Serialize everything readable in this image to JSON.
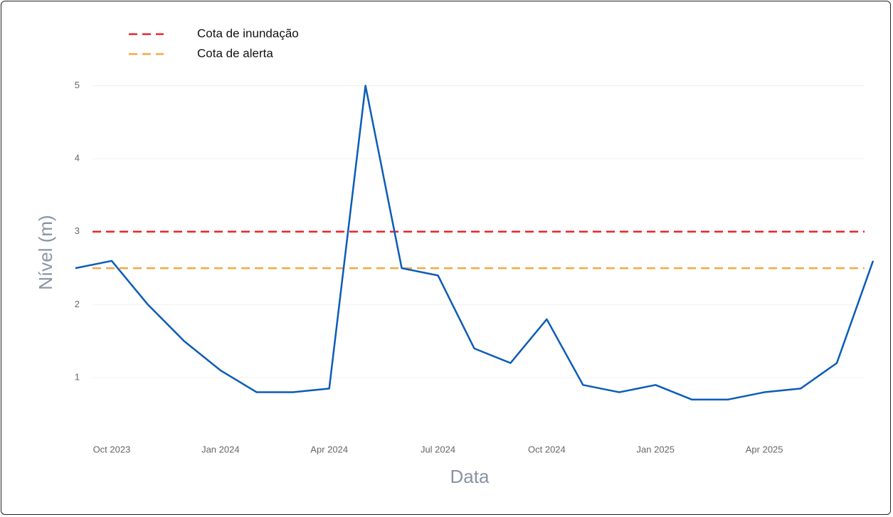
{
  "chart_data": {
    "type": "line",
    "xlabel": "Data",
    "ylabel": "Nível (m)",
    "x": [
      "2023-09",
      "2023-10",
      "2023-11",
      "2023-12",
      "2024-01",
      "2024-02",
      "2024-03",
      "2024-04",
      "2024-05",
      "2024-06",
      "2024-07",
      "2024-08",
      "2024-09",
      "2024-10",
      "2024-11",
      "2024-12",
      "2025-01",
      "2025-02",
      "2025-03",
      "2025-04",
      "2025-05",
      "2025-06",
      "2025-07"
    ],
    "series": [
      {
        "color": "#0a5cb8",
        "values": [
          2.5,
          2.6,
          2.0,
          1.5,
          1.1,
          0.8,
          0.8,
          0.85,
          5.0,
          2.5,
          2.4,
          1.4,
          1.2,
          1.8,
          0.9,
          0.8,
          0.9,
          0.7,
          0.7,
          0.8,
          0.85,
          1.2,
          2.6
        ]
      }
    ],
    "hlines": [
      {
        "name": "Cota de inundação",
        "color": "#e8262b",
        "value": 3
      },
      {
        "name": "Cota de alerta",
        "color": "#f5a742",
        "value": 2.5
      }
    ],
    "xlim": [
      "2023-09",
      "2025-07"
    ],
    "xticks": [
      {
        "value": "2023-10",
        "label": "Oct 2023"
      },
      {
        "value": "2024-01",
        "label": "Jan 2024"
      },
      {
        "value": "2024-04",
        "label": "Apr 2024"
      },
      {
        "value": "2024-07",
        "label": "Jul 2024"
      },
      {
        "value": "2024-10",
        "label": "Oct 2024"
      },
      {
        "value": "2025-01",
        "label": "Jan 2025"
      },
      {
        "value": "2025-04",
        "label": "Apr 2025"
      }
    ],
    "ylim": [
      0.25,
      5.2
    ],
    "yticks": [
      1,
      2,
      3,
      4,
      5
    ],
    "grid": true,
    "legend": "top-left"
  }
}
